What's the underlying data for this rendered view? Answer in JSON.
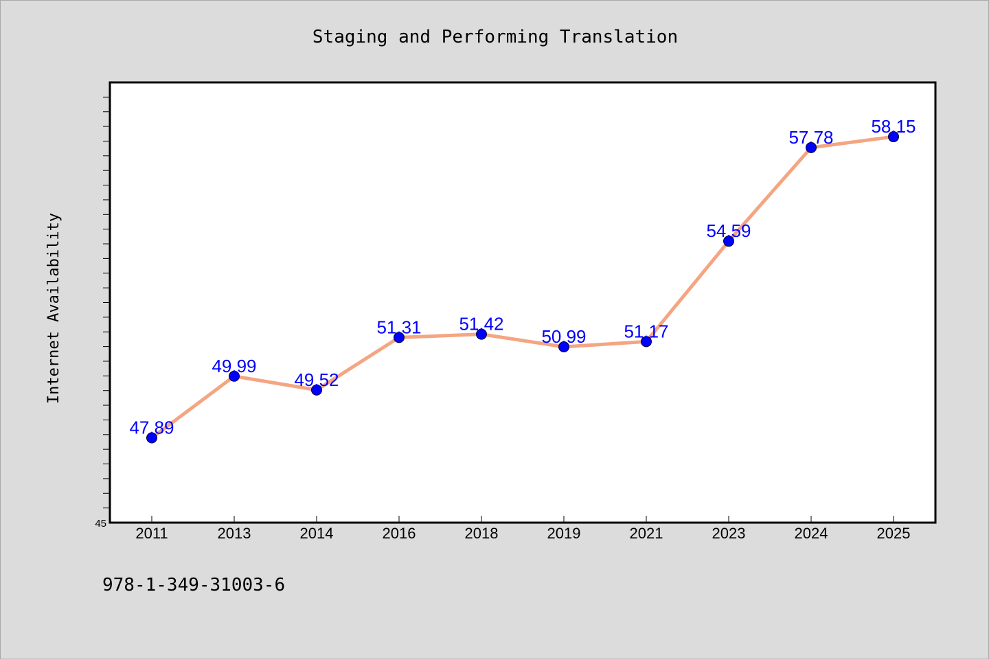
{
  "chart_data": {
    "type": "line",
    "title": "Staging and Performing Translation",
    "xlabel": "",
    "ylabel": "Internet Availability",
    "categories": [
      "2011",
      "2013",
      "2014",
      "2016",
      "2018",
      "2019",
      "2021",
      "2023",
      "2024",
      "2025"
    ],
    "series": [
      {
        "values": [
          47.89,
          49.99,
          49.52,
          51.31,
          51.42,
          50.99,
          51.17,
          54.59,
          57.78,
          58.15
        ],
        "data_labels": [
          "47.89",
          "49.99",
          "49.52",
          "51.31",
          "51.42",
          "50.99",
          "51.17",
          "54.59",
          "57.78",
          "58.15"
        ],
        "line_color": "#f4a582",
        "marker_color": "#0000ff"
      }
    ],
    "ylim": [
      45,
      60
    ],
    "y_tick_labels": [
      "45"
    ],
    "grid": false,
    "legend": "none"
  },
  "footer": {
    "isbn": "978-1-349-31003-6"
  },
  "colors": {
    "background": "#dcdcdc",
    "plot_background": "#ffffff",
    "line": "#f4a582",
    "marker": "#0000ff",
    "data_label": "#0000ff"
  }
}
